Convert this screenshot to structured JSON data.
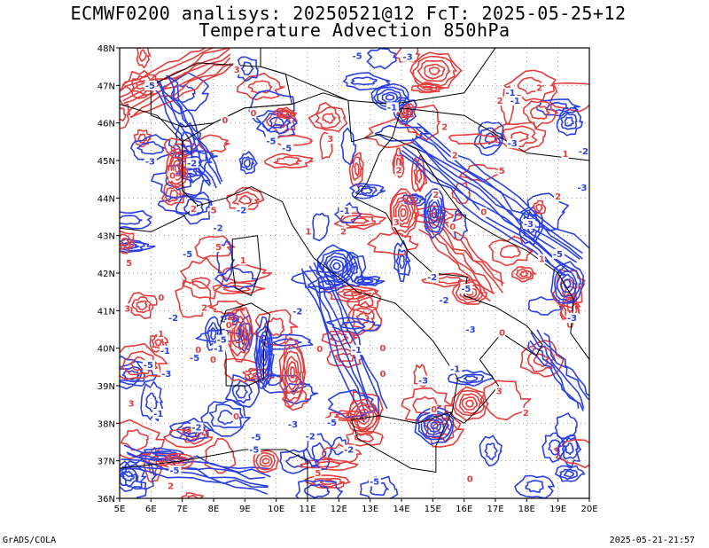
{
  "title_line1": "ECMWF0200 analisys: 20250521@12 FcT: 2025-05-25+12",
  "title_line2": "Temperature Advection 850hPa",
  "footer_left": "GrADS/COLA",
  "footer_right": "2025-05-21-21:57",
  "lon_ticks": [
    "5E",
    "6E",
    "7E",
    "8E",
    "9E",
    "10E",
    "11E",
    "12E",
    "13E",
    "14E",
    "15E",
    "16E",
    "17E",
    "18E",
    "19E",
    "20E"
  ],
  "lat_ticks": [
    "48N",
    "47N",
    "46N",
    "45N",
    "44N",
    "43N",
    "42N",
    "41N",
    "40N",
    "39N",
    "38N",
    "37N",
    "36N"
  ],
  "extent": {
    "lon": [
      5,
      20
    ],
    "lat": [
      36,
      48
    ]
  },
  "contour_labels": [
    "0",
    "1",
    "-1",
    "2",
    "-2",
    "3",
    "-3",
    "5",
    "-5"
  ],
  "colors": {
    "positive": "#e83c3c",
    "negative": "#2a40e6",
    "coast": "#000000",
    "grid": "#9a9a9a"
  }
}
